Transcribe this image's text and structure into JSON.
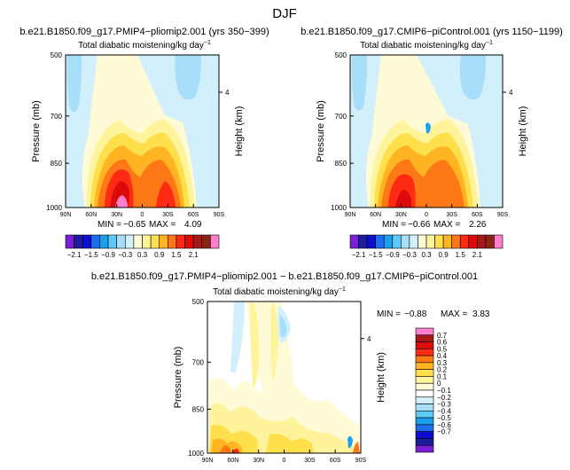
{
  "figure_title": "DJF",
  "colors": {
    "sky": "#d2f0fc",
    "scale_top": [
      "#7a1fd6",
      "#1c1c9c",
      "#0d0dd0",
      "#1e6cf0",
      "#1aa0ee",
      "#5ec8f6",
      "#a8def8",
      "#d2f0fc",
      "#fffbd6",
      "#fff39c",
      "#ffe04c",
      "#ffb422",
      "#ff7818",
      "#ff2a14",
      "#dc0a0a",
      "#a81818",
      "#8c2414",
      "#ff7fcf"
    ],
    "scale_diff": [
      "#7a1fd6",
      "#1c1c9c",
      "#0d0dd0",
      "#1e6cf0",
      "#1aa0ee",
      "#5ec8f6",
      "#a8def8",
      "#d2f0fc",
      "#ffffff",
      "#fffbd6",
      "#fff39c",
      "#ffe04c",
      "#ffb422",
      "#ff7818",
      "#ff2a14",
      "#dc0a0a",
      "#a81818",
      "#ff7fcf"
    ]
  },
  "chart_data": [
    {
      "type": "heatmap",
      "title": "b.e21.B1850.f09_g17.PMIP4−pliomip2.001 (yrs 350−399)",
      "subtitle": "Total diabatic moistening/kg day",
      "subtitle_exp": "−1",
      "ylabel": "Pressure (mb)",
      "y2label": "Height (km)",
      "y2ticks": [
        "4"
      ],
      "xticks": [
        "90N",
        "60N",
        "30N",
        "0",
        "30S",
        "60S",
        "90S"
      ],
      "yticks": [
        "500",
        "700",
        "850",
        "1000"
      ],
      "min_label": "MIN =",
      "min_value": "−0.65",
      "max_label": "MAX =",
      "max_value": "4.09",
      "colorbar_labels": [
        "−2.1",
        "−1.5",
        "−0.9",
        "−0.3",
        "0.3",
        "0.9",
        "1.5",
        "2.1"
      ]
    },
    {
      "type": "heatmap",
      "title": "b.e21.B1850.f09_g17.CMIP6−piControl.001 (yrs 1150−1199)",
      "subtitle": "Total diabatic moistening/kg day",
      "subtitle_exp": "−1",
      "ylabel": "Pressure (mb)",
      "y2label": "Height (km)",
      "y2ticks": [
        "4"
      ],
      "xticks": [
        "90N",
        "60N",
        "30N",
        "0",
        "30S",
        "60S",
        "90S"
      ],
      "yticks": [
        "500",
        "700",
        "850",
        "1000"
      ],
      "min_label": "MIN =",
      "min_value": "−0.66",
      "max_label": "MAX =",
      "max_value": "2.26",
      "colorbar_labels": [
        "−2.1",
        "−1.5",
        "−0.9",
        "−0.3",
        "0.3",
        "0.9",
        "1.5",
        "2.1"
      ]
    },
    {
      "type": "heatmap",
      "title": "b.e21.B1850.f09_g17.PMIP4−pliomip2.001 − b.e21.B1850.f09_g17.CMIP6−piControl.001",
      "subtitle": "Total diabatic moistening/kg day",
      "subtitle_exp": "−1",
      "ylabel": "Pressure (mb)",
      "y2label": "Height (km)",
      "y2ticks": [
        "4"
      ],
      "xticks": [
        "90N",
        "60N",
        "30N",
        "0",
        "30S",
        "60S",
        "90S"
      ],
      "yticks": [
        "500",
        "700",
        "850",
        "1000"
      ],
      "min_label": "MIN =",
      "min_value": "−0.88",
      "max_label": "MAX =",
      "max_value": "3.83",
      "colorbar_labels": [
        "0.7",
        "0.6",
        "0.5",
        "0.4",
        "0.3",
        "0.2",
        "0.1",
        "0",
        "−0.1",
        "−0.2",
        "−0.3",
        "−0.4",
        "−0.5",
        "−0.6",
        "−0.7"
      ]
    }
  ]
}
